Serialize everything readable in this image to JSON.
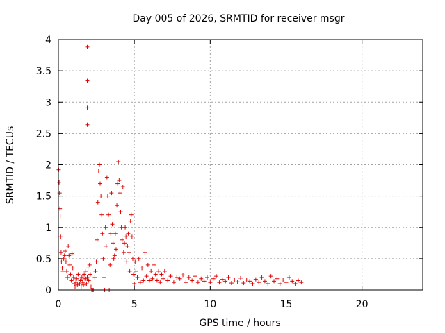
{
  "chart_data": {
    "type": "scatter",
    "title": "Day 005 of 2026, SRMTID for receiver msgr",
    "xlabel": "GPS time / hours",
    "ylabel": "SRMTID / TECUs",
    "xlim": [
      0,
      24
    ],
    "ylim": [
      0,
      4
    ],
    "x_ticks": [
      0,
      5,
      10,
      15,
      20
    ],
    "x_tick_labels": [
      "0",
      "5",
      "10",
      "15",
      "20"
    ],
    "y_ticks": [
      0,
      0.5,
      1,
      1.5,
      2,
      2.5,
      3,
      3.5,
      4
    ],
    "y_tick_labels": [
      "0",
      "0.5",
      "1",
      "1.5",
      "2",
      "2.5",
      "3",
      "3.5",
      "4"
    ],
    "grid": true,
    "marker": "+",
    "color": "#e00000",
    "series": [
      {
        "name": "SRMTID",
        "points": [
          [
            0.02,
            1.92
          ],
          [
            0.05,
            1.72
          ],
          [
            0.08,
            1.55
          ],
          [
            0.1,
            1.3
          ],
          [
            0.12,
            1.18
          ],
          [
            0.15,
            0.85
          ],
          [
            0.18,
            0.6
          ],
          [
            0.2,
            0.45
          ],
          [
            0.25,
            0.35
          ],
          [
            0.3,
            0.3
          ],
          [
            0.35,
            0.5
          ],
          [
            0.4,
            0.55
          ],
          [
            0.45,
            0.62
          ],
          [
            0.5,
            0.45
          ],
          [
            0.55,
            0.3
          ],
          [
            0.6,
            0.2
          ],
          [
            0.65,
            0.7
          ],
          [
            0.7,
            0.55
          ],
          [
            0.75,
            0.4
          ],
          [
            0.8,
            0.25
          ],
          [
            0.85,
            0.15
          ],
          [
            0.9,
            0.58
          ],
          [
            0.95,
            0.35
          ],
          [
            1.0,
            0.2
          ],
          [
            1.05,
            0.1
          ],
          [
            1.1,
            0.05
          ],
          [
            1.15,
            0.12
          ],
          [
            1.2,
            0.18
          ],
          [
            1.25,
            0.08
          ],
          [
            1.3,
            0.25
          ],
          [
            1.35,
            0.05
          ],
          [
            1.4,
            0.1
          ],
          [
            1.45,
            0.15
          ],
          [
            1.5,
            0.05
          ],
          [
            1.55,
            0.2
          ],
          [
            1.6,
            0.12
          ],
          [
            1.65,
            0.08
          ],
          [
            1.7,
            0.25
          ],
          [
            1.75,
            0.18
          ],
          [
            1.8,
            0.3
          ],
          [
            1.85,
            0.1
          ],
          [
            1.9,
            0.2
          ],
          [
            1.95,
            0.35
          ],
          [
            2.0,
            0.15
          ],
          [
            2.05,
            0.4
          ],
          [
            2.1,
            0.25
          ],
          [
            2.15,
            0.05
          ],
          [
            2.2,
            0.0
          ],
          [
            2.25,
            0.0
          ],
          [
            2.3,
            0.0
          ],
          [
            2.4,
            0.2
          ],
          [
            2.45,
            0.3
          ],
          [
            2.5,
            0.45
          ],
          [
            2.55,
            0.8
          ],
          [
            2.6,
            1.4
          ],
          [
            2.65,
            1.9
          ],
          [
            2.7,
            2.0
          ],
          [
            2.75,
            1.7
          ],
          [
            2.8,
            1.5
          ],
          [
            2.85,
            1.2
          ],
          [
            2.9,
            0.9
          ],
          [
            2.95,
            0.5
          ],
          [
            3.0,
            0.2
          ],
          [
            3.05,
            0.0
          ],
          [
            3.1,
            1.0
          ],
          [
            3.15,
            0.7
          ],
          [
            3.2,
            1.8
          ],
          [
            3.25,
            1.5
          ],
          [
            3.3,
            1.2
          ],
          [
            3.35,
            0.0
          ],
          [
            3.4,
            0.4
          ],
          [
            3.45,
            0.9
          ],
          [
            3.5,
            1.55
          ],
          [
            3.55,
            1.05
          ],
          [
            3.6,
            0.75
          ],
          [
            3.65,
            0.5
          ],
          [
            3.7,
            0.55
          ],
          [
            3.75,
            0.9
          ],
          [
            3.8,
            0.65
          ],
          [
            3.85,
            1.35
          ],
          [
            3.9,
            1.7
          ],
          [
            3.95,
            2.05
          ],
          [
            4.0,
            1.75
          ],
          [
            4.05,
            1.55
          ],
          [
            4.1,
            1.25
          ],
          [
            4.15,
            1.0
          ],
          [
            4.2,
            0.8
          ],
          [
            4.25,
            1.65
          ],
          [
            4.3,
            0.6
          ],
          [
            4.35,
            0.75
          ],
          [
            4.4,
            1.0
          ],
          [
            4.45,
            0.85
          ],
          [
            4.5,
            0.45
          ],
          [
            4.55,
            0.7
          ],
          [
            4.6,
            0.9
          ],
          [
            4.65,
            0.6
          ],
          [
            4.7,
            0.3
          ],
          [
            4.75,
            1.1
          ],
          [
            4.8,
            1.2
          ],
          [
            4.85,
            0.85
          ],
          [
            4.9,
            0.5
          ],
          [
            4.95,
            0.25
          ],
          [
            5.0,
            0.1
          ],
          [
            5.05,
            0.45
          ],
          [
            5.1,
            0.3
          ],
          [
            5.2,
            0.2
          ],
          [
            5.3,
            0.5
          ],
          [
            5.4,
            0.12
          ],
          [
            5.5,
            0.35
          ],
          [
            5.6,
            0.15
          ],
          [
            5.7,
            0.6
          ],
          [
            5.8,
            0.22
          ],
          [
            5.9,
            0.4
          ],
          [
            6.0,
            0.15
          ],
          [
            6.1,
            0.3
          ],
          [
            6.2,
            0.18
          ],
          [
            6.3,
            0.4
          ],
          [
            6.4,
            0.25
          ],
          [
            6.5,
            0.15
          ],
          [
            6.6,
            0.3
          ],
          [
            6.7,
            0.12
          ],
          [
            6.8,
            0.25
          ],
          [
            6.9,
            0.18
          ],
          [
            7.0,
            0.3
          ],
          [
            7.2,
            0.15
          ],
          [
            7.4,
            0.22
          ],
          [
            7.6,
            0.12
          ],
          [
            7.8,
            0.2
          ],
          [
            8.0,
            0.18
          ],
          [
            8.2,
            0.24
          ],
          [
            8.4,
            0.12
          ],
          [
            8.6,
            0.2
          ],
          [
            8.8,
            0.15
          ],
          [
            9.0,
            0.22
          ],
          [
            9.2,
            0.12
          ],
          [
            9.4,
            0.18
          ],
          [
            9.6,
            0.14
          ],
          [
            9.8,
            0.2
          ],
          [
            10.0,
            0.12
          ],
          [
            10.2,
            0.18
          ],
          [
            10.4,
            0.22
          ],
          [
            10.6,
            0.12
          ],
          [
            10.8,
            0.17
          ],
          [
            11.0,
            0.14
          ],
          [
            11.2,
            0.2
          ],
          [
            11.4,
            0.11
          ],
          [
            11.6,
            0.16
          ],
          [
            11.8,
            0.13
          ],
          [
            12.0,
            0.19
          ],
          [
            12.2,
            0.11
          ],
          [
            12.4,
            0.16
          ],
          [
            12.6,
            0.14
          ],
          [
            12.8,
            0.1
          ],
          [
            13.0,
            0.17
          ],
          [
            13.2,
            0.12
          ],
          [
            13.4,
            0.2
          ],
          [
            13.6,
            0.14
          ],
          [
            13.8,
            0.1
          ],
          [
            14.0,
            0.22
          ],
          [
            14.2,
            0.14
          ],
          [
            14.4,
            0.18
          ],
          [
            14.6,
            0.1
          ],
          [
            14.8,
            0.16
          ],
          [
            15.0,
            0.12
          ],
          [
            15.2,
            0.2
          ],
          [
            15.4,
            0.14
          ],
          [
            15.6,
            0.1
          ],
          [
            15.8,
            0.15
          ],
          [
            16.0,
            0.12
          ],
          [
            1.9,
            3.88
          ],
          [
            1.9,
            3.34
          ],
          [
            1.9,
            2.91
          ],
          [
            1.9,
            2.64
          ]
        ]
      }
    ]
  }
}
